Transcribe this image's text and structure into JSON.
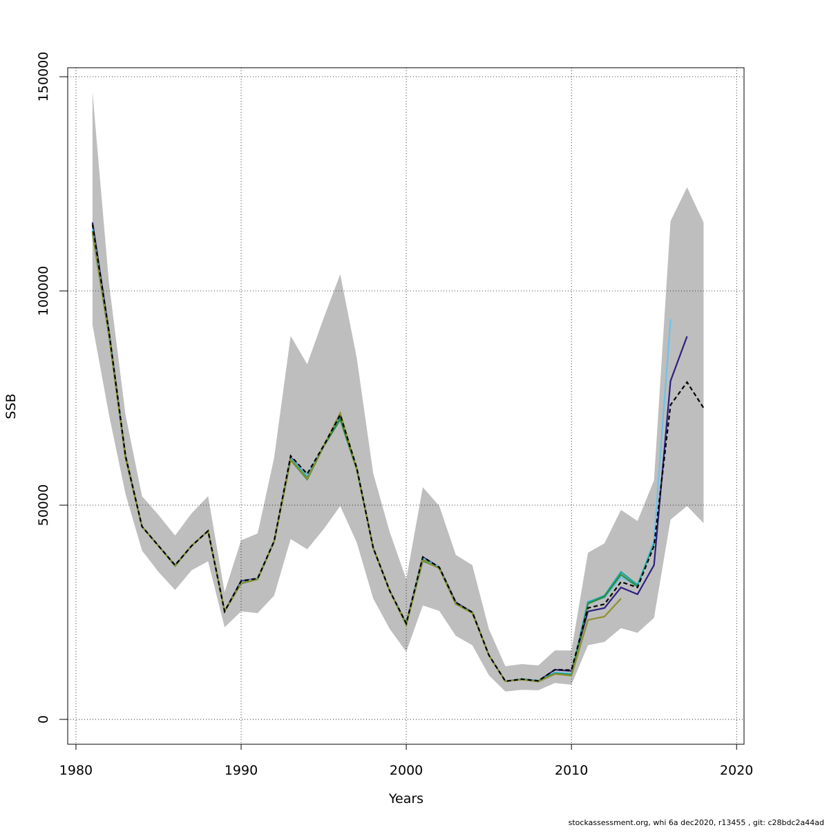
{
  "chart_data": {
    "type": "line",
    "x_label": "Years",
    "y_label": "SSB",
    "footer": "stockassessment.org, whi 6a dec2020, r13455 , git: c28bdc2a44ad",
    "xlim": [
      1979.5,
      2020.45
    ],
    "ylim": [
      -5800,
      152100
    ],
    "xticks": [
      1980,
      1990,
      2000,
      2010,
      2020
    ],
    "yticks": [
      0,
      50000,
      100000,
      150000
    ],
    "grid": true,
    "x": [
      1981,
      1982,
      1983,
      1984,
      1985,
      1986,
      1987,
      1988,
      1989,
      1990,
      1991,
      1992,
      1993,
      1994,
      1995,
      1996,
      1997,
      1998,
      1999,
      2000,
      2001,
      2002,
      2003,
      2004,
      2005,
      2006,
      2007,
      2008,
      2009,
      2010,
      2011,
      2012,
      2013,
      2014,
      2015,
      2016,
      2017,
      2018
    ],
    "band": {
      "color": "#bebebe",
      "upper": [
        146500,
        101800,
        71100,
        52100,
        47700,
        42900,
        48100,
        52100,
        29700,
        41800,
        43400,
        61100,
        89500,
        82900,
        93700,
        103900,
        84400,
        57400,
        43700,
        32700,
        54200,
        49800,
        38400,
        36000,
        21100,
        12400,
        12900,
        12600,
        16100,
        16100,
        38900,
        41100,
        48900,
        46300,
        55800,
        116300,
        124200,
        116000
      ],
      "lower": [
        92100,
        71100,
        52600,
        39400,
        34400,
        30200,
        34800,
        36900,
        21500,
        25200,
        24800,
        28900,
        42100,
        39700,
        44400,
        49800,
        41300,
        28200,
        21100,
        15800,
        26600,
        25300,
        19500,
        17300,
        10300,
        6500,
        6900,
        6800,
        8500,
        8100,
        17300,
        18100,
        21300,
        20200,
        23700,
        46600,
        49800,
        45800
      ]
    },
    "series": [
      {
        "color": "#2c1e7f",
        "values": [
          116000,
          90500,
          61500,
          45000,
          40500,
          36000,
          40500,
          44000,
          25200,
          32300,
          32900,
          41600,
          61200,
          57000,
          63900,
          71000,
          58700,
          40000,
          30000,
          22400,
          37900,
          35500,
          27300,
          25000,
          15000,
          8900,
          9400,
          9000,
          11600,
          11300,
          25200,
          26000,
          30800,
          29200,
          36000,
          79000,
          89400,
          null
        ]
      },
      {
        "color": "#6cc3e8",
        "values": [
          114500,
          90000,
          61300,
          45000,
          40500,
          36000,
          40500,
          44000,
          25200,
          32000,
          32900,
          41600,
          61000,
          57000,
          63900,
          71000,
          58700,
          40000,
          30000,
          22400,
          37600,
          35500,
          27000,
          25000,
          15000,
          8900,
          9400,
          9000,
          11000,
          10700,
          27600,
          28400,
          33200,
          31100,
          41800,
          93400,
          null,
          null
        ]
      },
      {
        "color": "#1aa59a",
        "values": [
          114000,
          90000,
          61300,
          45000,
          40500,
          36000,
          40500,
          44000,
          25200,
          31800,
          32800,
          41600,
          60800,
          56500,
          63800,
          70500,
          58500,
          40000,
          30000,
          22300,
          37300,
          35400,
          27000,
          25000,
          15000,
          8900,
          9400,
          9000,
          10800,
          10500,
          27300,
          28900,
          34400,
          31400,
          41000,
          null,
          null,
          null
        ]
      },
      {
        "color": "#2e8b3e",
        "values": [
          113500,
          89500,
          61000,
          45000,
          40500,
          35800,
          40500,
          44000,
          25200,
          31700,
          32700,
          41500,
          60500,
          56000,
          63700,
          70000,
          58300,
          40000,
          30000,
          22200,
          37000,
          35300,
          26900,
          25000,
          15000,
          8900,
          9300,
          8900,
          10700,
          10400,
          27000,
          28600,
          33800,
          31000,
          null,
          null,
          null,
          null
        ]
      },
      {
        "color": "#8f8f2e",
        "values": [
          113800,
          89500,
          61000,
          45000,
          40500,
          35900,
          40500,
          44000,
          25200,
          31800,
          32700,
          41500,
          60600,
          56200,
          63800,
          71500,
          58400,
          40000,
          30000,
          22000,
          37200,
          35200,
          26900,
          24800,
          15000,
          8900,
          9300,
          8800,
          10600,
          10200,
          23200,
          24000,
          28200,
          null,
          null,
          null,
          null,
          null
        ]
      },
      {
        "color": "#000000",
        "dashed": true,
        "values": [
          115500,
          90500,
          61500,
          45000,
          40500,
          36000,
          40500,
          44000,
          25200,
          32300,
          32900,
          41600,
          61500,
          57300,
          63900,
          71100,
          58700,
          40000,
          30000,
          22400,
          37900,
          35500,
          27300,
          25000,
          15000,
          8900,
          9400,
          9000,
          11600,
          11500,
          26000,
          26900,
          32100,
          30800,
          40500,
          73400,
          78700,
          72700
        ]
      }
    ]
  }
}
